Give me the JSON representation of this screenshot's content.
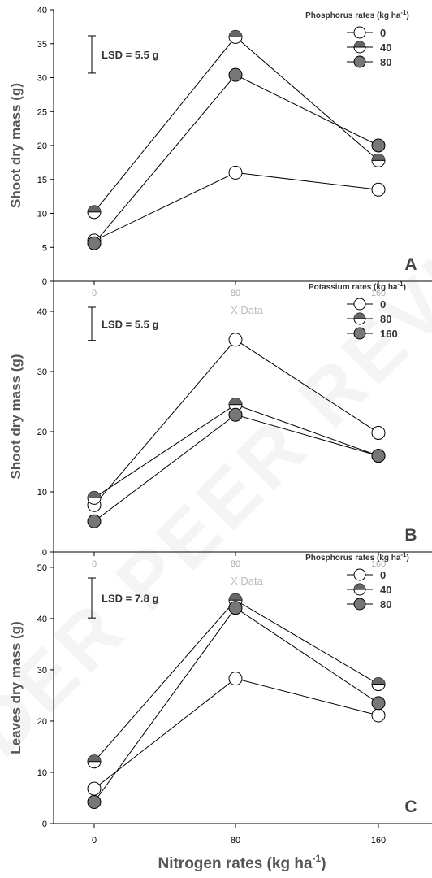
{
  "page": {
    "watermark": "UNDER PEER REVIEW"
  },
  "x_axis": {
    "label": "Nitrogen rates (kg ha",
    "label_sup": "-1",
    "label_end": ")"
  },
  "colors": {
    "open": "#ffffff",
    "half": "#666666",
    "full": "#777777",
    "line": "#000000"
  },
  "chart_data": [
    {
      "type": "line",
      "panel": "A",
      "ylabel": "Shoot dry mass (g)",
      "ylim": [
        0,
        40
      ],
      "yticks": [
        0,
        5,
        10,
        15,
        20,
        25,
        30,
        35,
        40
      ],
      "categories": [
        "0",
        "80",
        "160"
      ],
      "x_ghost_label": "",
      "legend_title": "Phosphorus rates (kg ha",
      "legend_title_sup": "-1",
      "legend_title_end": ")",
      "lsd": {
        "label": "LSD = 5.5 g",
        "value": 5.5
      },
      "series": [
        {
          "name": "0",
          "marker": "open",
          "values": [
            6.0,
            16.0,
            13.5
          ]
        },
        {
          "name": "40",
          "marker": "half",
          "values": [
            10.2,
            36.0,
            17.8
          ]
        },
        {
          "name": "80",
          "marker": "full",
          "values": [
            5.6,
            30.4,
            20.0
          ]
        }
      ]
    },
    {
      "type": "line",
      "panel": "B",
      "ylabel": "Shoot dry mass (g)",
      "ylim": [
        0,
        45
      ],
      "yticks": [
        0,
        10,
        20,
        30,
        40
      ],
      "categories": [
        "0",
        "80",
        "160"
      ],
      "x_ghost_label": "X Data",
      "legend_title": "Potassium rates (kg ha",
      "legend_title_sup": "-1",
      "legend_title_end": ")",
      "lsd": {
        "label": "LSD = 5.5 g",
        "value": 5.5
      },
      "series": [
        {
          "name": "0",
          "marker": "open",
          "values": [
            7.8,
            35.3,
            19.8
          ]
        },
        {
          "name": "80",
          "marker": "half",
          "values": [
            9.0,
            24.5,
            16.0
          ]
        },
        {
          "name": "160",
          "marker": "full",
          "values": [
            5.1,
            22.8,
            16.0
          ]
        }
      ]
    },
    {
      "type": "line",
      "panel": "C",
      "ylabel": "Leaves dry mass (g)",
      "ylim": [
        0,
        53
      ],
      "yticks": [
        0,
        10,
        20,
        30,
        40,
        50
      ],
      "categories": [
        "0",
        "80",
        "160"
      ],
      "x_ghost_label": "X Data",
      "legend_title": "Phosphorus rates (kg ha",
      "legend_title_sup": "-1",
      "legend_title_end": ")",
      "lsd": {
        "label": "LSD = 7.8 g",
        "value": 7.8
      },
      "series": [
        {
          "name": "0",
          "marker": "open",
          "values": [
            6.8,
            28.3,
            21.1
          ]
        },
        {
          "name": "40",
          "marker": "half",
          "values": [
            12.1,
            43.6,
            27.2
          ]
        },
        {
          "name": "80",
          "marker": "full",
          "values": [
            4.2,
            42.1,
            23.5
          ]
        }
      ]
    }
  ]
}
